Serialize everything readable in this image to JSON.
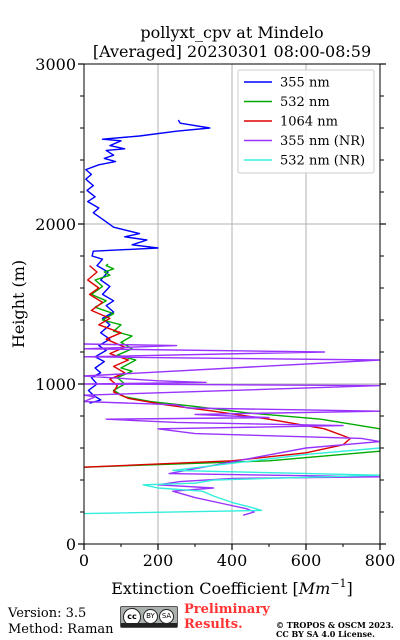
{
  "chart_data": {
    "type": "line",
    "title_line1": "pollyxt_cpv at Mindelo",
    "title_line2": "[Averaged] 20230301 08:00-08:59",
    "xlabel": "Extinction Coefficient [",
    "xlabel_unit": "Mm",
    "xlabel_exp": "−1",
    "xlabel_end": "]",
    "ylabel": "Height (m)",
    "xlim": [
      0,
      800
    ],
    "ylim": [
      0,
      3000
    ],
    "x_ticks": [
      0,
      200,
      400,
      600,
      800
    ],
    "x_tick_labels": [
      "0",
      "200",
      "400",
      "600",
      "800"
    ],
    "y_ticks": [
      0,
      1000,
      2000,
      3000
    ],
    "y_tick_labels": [
      "0",
      "1000",
      "2000",
      "3000"
    ],
    "grid": true,
    "legend_position": "top-right",
    "series": [
      {
        "name": "355 nm",
        "color": "#0000ff",
        "points": [
          [
            15,
            880
          ],
          [
            45,
            900
          ],
          [
            25,
            930
          ],
          [
            12,
            960
          ],
          [
            35,
            1000
          ],
          [
            20,
            1040
          ],
          [
            45,
            1070
          ],
          [
            30,
            1100
          ],
          [
            55,
            1140
          ],
          [
            30,
            1170
          ],
          [
            60,
            1210
          ],
          [
            40,
            1240
          ],
          [
            70,
            1280
          ],
          [
            45,
            1320
          ],
          [
            70,
            1370
          ],
          [
            50,
            1410
          ],
          [
            80,
            1450
          ],
          [
            60,
            1490
          ],
          [
            80,
            1520
          ],
          [
            50,
            1560
          ],
          [
            70,
            1610
          ],
          [
            45,
            1650
          ],
          [
            65,
            1700
          ],
          [
            35,
            1740
          ],
          [
            50,
            1780
          ],
          [
            22,
            1800
          ],
          [
            25,
            1830
          ],
          [
            200,
            1850
          ],
          [
            130,
            1870
          ],
          [
            170,
            1900
          ],
          [
            110,
            1920
          ],
          [
            150,
            1940
          ],
          [
            80,
            1980
          ],
          [
            50,
            2030
          ],
          [
            25,
            2070
          ],
          [
            40,
            2100
          ],
          [
            10,
            2140
          ],
          [
            30,
            2170
          ],
          [
            8,
            2210
          ],
          [
            25,
            2240
          ],
          [
            5,
            2280
          ],
          [
            20,
            2310
          ],
          [
            5,
            2340
          ],
          [
            40,
            2370
          ],
          [
            85,
            2390
          ],
          [
            55,
            2410
          ],
          [
            80,
            2430
          ],
          [
            60,
            2460
          ],
          [
            110,
            2470
          ],
          [
            70,
            2490
          ],
          [
            100,
            2520
          ],
          [
            50,
            2530
          ],
          [
            150,
            2550
          ],
          [
            250,
            2580
          ],
          [
            340,
            2600
          ],
          [
            260,
            2630
          ],
          [
            255,
            2650
          ]
        ]
      },
      {
        "name": "532 nm",
        "color": "#00aa00",
        "points": [
          [
            0,
            480
          ],
          [
            500,
            520
          ],
          [
            800,
            580
          ],
          [
            800,
            720
          ],
          [
            640,
            780
          ],
          [
            440,
            820
          ],
          [
            300,
            860
          ],
          [
            180,
            890
          ],
          [
            110,
            920
          ],
          [
            80,
            960
          ],
          [
            110,
            1000
          ],
          [
            90,
            1040
          ],
          [
            130,
            1080
          ],
          [
            100,
            1100
          ],
          [
            140,
            1150
          ],
          [
            90,
            1180
          ],
          [
            130,
            1220
          ],
          [
            100,
            1260
          ],
          [
            130,
            1300
          ],
          [
            80,
            1330
          ],
          [
            100,
            1370
          ],
          [
            50,
            1400
          ],
          [
            80,
            1440
          ],
          [
            30,
            1480
          ],
          [
            60,
            1520
          ],
          [
            20,
            1560
          ],
          [
            50,
            1610
          ],
          [
            30,
            1650
          ],
          [
            70,
            1680
          ],
          [
            55,
            1700
          ],
          [
            80,
            1720
          ],
          [
            60,
            1740
          ],
          [
            65,
            1750
          ]
        ]
      },
      {
        "name": "1064 nm",
        "color": "#dd0000",
        "points": [
          [
            0,
            480
          ],
          [
            400,
            520
          ],
          [
            600,
            570
          ],
          [
            700,
            620
          ],
          [
            720,
            660
          ],
          [
            650,
            720
          ],
          [
            500,
            780
          ],
          [
            350,
            830
          ],
          [
            220,
            870
          ],
          [
            120,
            910
          ],
          [
            80,
            950
          ],
          [
            90,
            990
          ],
          [
            70,
            1030
          ],
          [
            110,
            1070
          ],
          [
            80,
            1110
          ],
          [
            120,
            1150
          ],
          [
            70,
            1190
          ],
          [
            110,
            1230
          ],
          [
            60,
            1280
          ],
          [
            100,
            1320
          ],
          [
            40,
            1370
          ],
          [
            70,
            1410
          ],
          [
            20,
            1460
          ],
          [
            50,
            1510
          ],
          [
            15,
            1560
          ],
          [
            40,
            1600
          ],
          [
            10,
            1650
          ],
          [
            35,
            1700
          ],
          [
            15,
            1740
          ]
        ]
      },
      {
        "name": "355 nm (NR)",
        "color": "#9933ff",
        "points": [
          [
            430,
            180
          ],
          [
            460,
            200
          ],
          [
            440,
            220
          ],
          [
            380,
            250
          ],
          [
            300,
            290
          ],
          [
            240,
            330
          ],
          [
            350,
            350
          ],
          [
            200,
            370
          ],
          [
            260,
            390
          ],
          [
            400,
            410
          ],
          [
            800,
            420
          ],
          [
            230,
            440
          ],
          [
            600,
            600
          ],
          [
            800,
            640
          ],
          [
            750,
            660
          ],
          [
            300,
            690
          ],
          [
            200,
            720
          ],
          [
            700,
            740
          ],
          [
            250,
            760
          ],
          [
            60,
            780
          ],
          [
            500,
            790
          ],
          [
            300,
            810
          ],
          [
            800,
            830
          ],
          [
            280,
            850
          ],
          [
            250,
            870
          ],
          [
            0,
            890
          ],
          [
            30,
            920
          ],
          [
            0,
            930
          ],
          [
            800,
            990
          ],
          [
            0,
            1000
          ],
          [
            330,
            1010
          ],
          [
            200,
            1020
          ],
          [
            0,
            1050
          ],
          [
            800,
            1150
          ],
          [
            0,
            1170
          ],
          [
            650,
            1200
          ],
          [
            0,
            1220
          ],
          [
            250,
            1240
          ],
          [
            0,
            1250
          ]
        ]
      },
      {
        "name": "532 nm (NR)",
        "color": "#33eedd",
        "points": [
          [
            0,
            190
          ],
          [
            480,
            210
          ],
          [
            450,
            230
          ],
          [
            400,
            260
          ],
          [
            350,
            300
          ],
          [
            320,
            330
          ],
          [
            200,
            350
          ],
          [
            160,
            370
          ],
          [
            300,
            380
          ],
          [
            350,
            400
          ],
          [
            800,
            430
          ],
          [
            240,
            460
          ],
          [
            600,
            560
          ],
          [
            800,
            600
          ]
        ]
      }
    ]
  },
  "footer": {
    "version": "Version: 3.5",
    "method": "Method: Raman",
    "preliminary_line1": "Preliminary",
    "preliminary_line2": "Results.",
    "copyright_line1": "© TROPOS & OSCM 2023.",
    "copyright_line2": "CC BY SA 4.0 License.",
    "license_badge": {
      "cc": "cc",
      "by": "BY",
      "sa": "SA"
    }
  }
}
